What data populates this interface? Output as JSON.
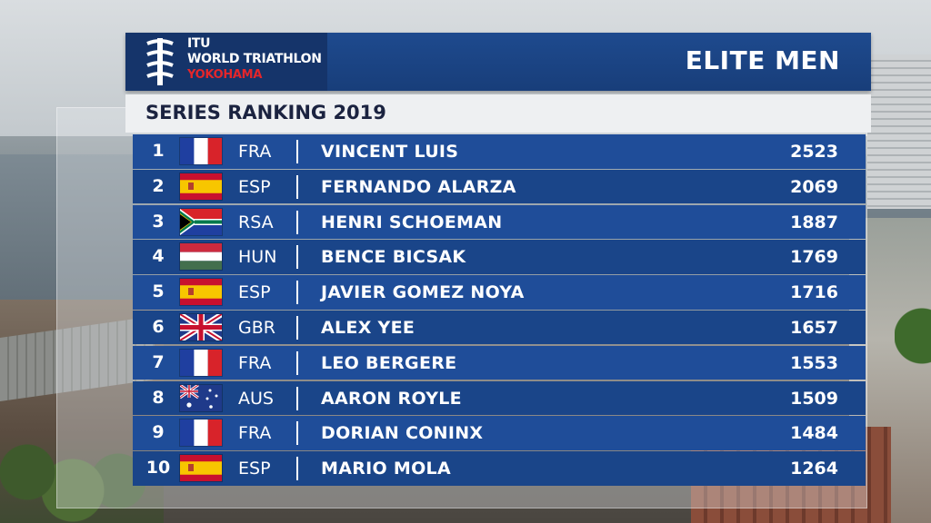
{
  "header": {
    "logo_line1": "ITU",
    "logo_line2": "WORLD TRIATHLON",
    "logo_line3": "YOKOHAMA",
    "category": "ELITE MEN"
  },
  "subtitle": "SERIES RANKING 2019",
  "rankings": [
    {
      "rank": "1",
      "flag_icon": "france-flag-icon",
      "nation": "FRA",
      "name": "VINCENT LUIS",
      "points": "2523"
    },
    {
      "rank": "2",
      "flag_icon": "spain-flag-icon",
      "nation": "ESP",
      "name": "FERNANDO ALARZA",
      "points": "2069"
    },
    {
      "rank": "3",
      "flag_icon": "south-africa-flag-icon",
      "nation": "RSA",
      "name": "HENRI SCHOEMAN",
      "points": "1887"
    },
    {
      "rank": "4",
      "flag_icon": "hungary-flag-icon",
      "nation": "HUN",
      "name": "BENCE BICSAK",
      "points": "1769"
    },
    {
      "rank": "5",
      "flag_icon": "spain-flag-icon",
      "nation": "ESP",
      "name": "JAVIER GOMEZ NOYA",
      "points": "1716"
    },
    {
      "rank": "6",
      "flag_icon": "uk-flag-icon",
      "nation": "GBR",
      "name": "ALEX YEE",
      "points": "1657"
    },
    {
      "rank": "7",
      "flag_icon": "france-flag-icon",
      "nation": "FRA",
      "name": "LEO BERGERE",
      "points": "1553"
    },
    {
      "rank": "8",
      "flag_icon": "australia-flag-icon",
      "nation": "AUS",
      "name": "AARON ROYLE",
      "points": "1509"
    },
    {
      "rank": "9",
      "flag_icon": "france-flag-icon",
      "nation": "FRA",
      "name": "DORIAN CONINX",
      "points": "1484"
    },
    {
      "rank": "10",
      "flag_icon": "spain-flag-icon",
      "nation": "ESP",
      "name": "MARIO MOLA",
      "points": "1264"
    }
  ],
  "colors": {
    "header_blue": "#1e4a8e",
    "row_blue": "#1f4d99",
    "logo_accent_red": "#e3262b"
  }
}
